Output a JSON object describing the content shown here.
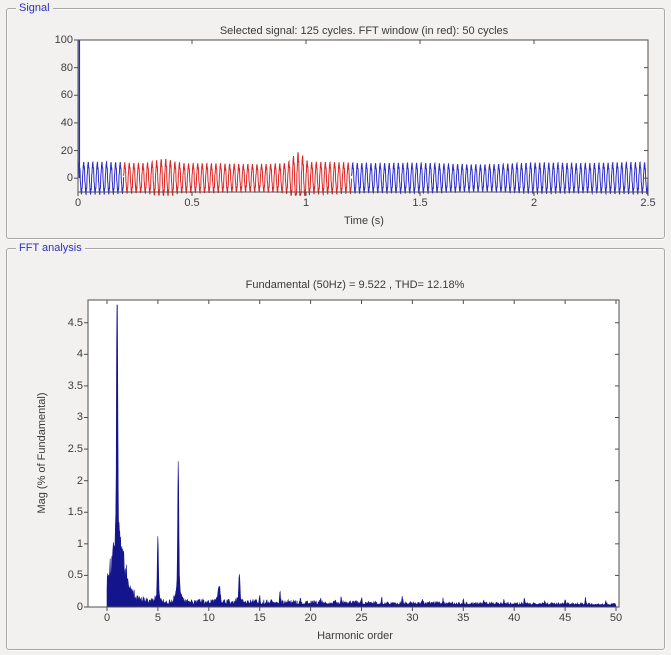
{
  "window": {
    "background_color": "#f2f1ef",
    "plot_background_color": "#ffffff",
    "axis_color": "#4f4f4f",
    "text_color": "#3a3a3a",
    "panel_label_color": "#2f2fbe"
  },
  "panels": {
    "signal": {
      "label": "Signal",
      "title": "Selected signal: 125 cycles. FFT window (in red): 50 cycles",
      "xlabel": "Time (s)",
      "x_ticks": [
        "0",
        "0.5",
        "1",
        "1.5",
        "2",
        "2.5"
      ],
      "y_ticks": [
        "0",
        "20",
        "40",
        "60",
        "80",
        "100"
      ]
    },
    "fft": {
      "label": "FFT analysis",
      "title": "Fundamental (50Hz) = 9.522 , THD= 12.18%",
      "xlabel": "Harmonic order",
      "ylabel": "Mag (% of Fundamental)",
      "x_ticks": [
        "0",
        "5",
        "10",
        "15",
        "20",
        "25",
        "30",
        "35",
        "40",
        "45",
        "50"
      ],
      "y_ticks": [
        "0",
        "0.5",
        "1",
        "1.5",
        "2",
        "2.5",
        "3",
        "3.5",
        "4",
        "4.5"
      ]
    }
  },
  "chart_data": [
    {
      "type": "line",
      "title": "Selected signal: 125 cycles. FFT window (in red): 50 cycles",
      "xlabel": "Time (s)",
      "ylabel": "",
      "xlim": [
        0,
        2.5
      ],
      "ylim": [
        -10,
        100
      ],
      "x_tick_values": [
        0,
        0.5,
        1,
        1.5,
        2,
        2.5
      ],
      "y_tick_values": [
        0,
        20,
        40,
        60,
        80,
        100
      ],
      "total_cycles": 125,
      "fft_window_cycles": 50,
      "signal": {
        "frequency_hz": 50,
        "base_amplitude": 10,
        "initial_spike": {
          "t": 0,
          "peak": 100
        },
        "fft_window_start_s": 0.2,
        "fft_window_color": "red",
        "bursts": [
          {
            "center_s": 0.375,
            "extra_amplitude": 3.2
          },
          {
            "center_s": 0.965,
            "extra_amplitude": 7
          }
        ]
      },
      "colors": {
        "signal_blue": "#2a2ac8",
        "window_red": "#dd2222"
      }
    },
    {
      "type": "area",
      "title": "Fundamental (50Hz) = 9.522 , THD= 12.18%",
      "xlabel": "Harmonic order",
      "ylabel": "Mag (% of Fundamental)",
      "xlim": [
        0,
        50
      ],
      "ylim": [
        0,
        4.86
      ],
      "x_tick_values": [
        0,
        5,
        10,
        15,
        20,
        25,
        30,
        35,
        40,
        45,
        50
      ],
      "y_tick_values": [
        0,
        0.5,
        1,
        1.5,
        2,
        2.5,
        3,
        3.5,
        4,
        4.5
      ],
      "fundamental_hz": 50,
      "fundamental_value": 9.522,
      "thd_percent": 12.18,
      "peaks": [
        {
          "h": 1,
          "mag": 4.78
        },
        {
          "h": 5,
          "mag": 1.02
        },
        {
          "h": 7,
          "mag": 2.25
        },
        {
          "h": 11,
          "mag": 0.27
        },
        {
          "h": 13,
          "mag": 0.44
        },
        {
          "h": 15,
          "mag": 0.1
        },
        {
          "h": 17,
          "mag": 0.16
        },
        {
          "h": 19,
          "mag": 0.1
        },
        {
          "h": 21,
          "mag": 0.08
        },
        {
          "h": 23,
          "mag": 0.12
        },
        {
          "h": 25,
          "mag": 0.09
        },
        {
          "h": 27,
          "mag": 0.07
        },
        {
          "h": 29,
          "mag": 0.13
        },
        {
          "h": 31,
          "mag": 0.08
        },
        {
          "h": 33,
          "mag": 0.06
        },
        {
          "h": 35,
          "mag": 0.08
        },
        {
          "h": 37,
          "mag": 0.06
        },
        {
          "h": 39,
          "mag": 0.07
        },
        {
          "h": 41,
          "mag": 0.09
        },
        {
          "h": 43,
          "mag": 0.06
        },
        {
          "h": 45,
          "mag": 0.07
        },
        {
          "h": 47,
          "mag": 0.1
        },
        {
          "h": 49,
          "mag": 0.06
        }
      ],
      "pedestal_near_fundamental": {
        "center_h": 1,
        "approx_height": 0.9
      },
      "noise_floor_approx": 0.06,
      "color": "#14148c"
    }
  ]
}
